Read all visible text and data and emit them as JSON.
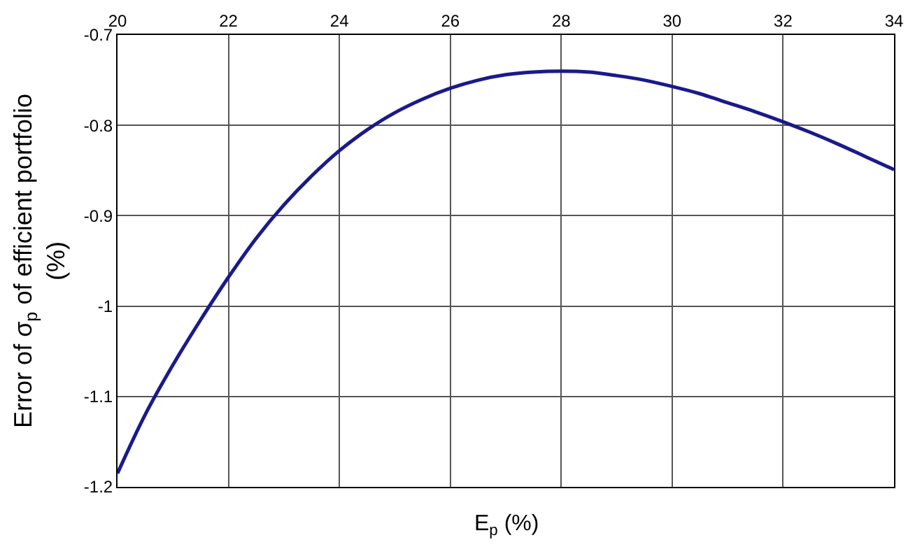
{
  "chart_data": {
    "type": "line",
    "xlabel": "E$_{p}$ (%)",
    "ylabel": "Error of σ$_{p}$ of efficient portfolio (%)",
    "x": [
      20,
      20.5,
      21,
      21.5,
      22,
      22.5,
      23,
      23.5,
      24,
      24.5,
      25,
      25.5,
      26,
      26.5,
      27,
      27.5,
      28,
      28.5,
      29,
      29.5,
      30,
      30.5,
      31,
      31.5,
      32,
      32.5,
      33,
      33.5,
      34
    ],
    "series": [
      {
        "color": "#1a1a8c",
        "values": [
          -1.185,
          -1.12,
          -1.065,
          -1.015,
          -0.968,
          -0.925,
          -0.888,
          -0.856,
          -0.828,
          -0.805,
          -0.786,
          -0.771,
          -0.759,
          -0.75,
          -0.744,
          -0.741,
          -0.74,
          -0.741,
          -0.745,
          -0.75,
          -0.757,
          -0.765,
          -0.775,
          -0.785,
          -0.796,
          -0.808,
          -0.821,
          -0.835,
          -0.849
        ]
      }
    ],
    "xlim": [
      20,
      34
    ],
    "xticks": [
      20,
      22,
      24,
      26,
      28,
      30,
      32,
      34
    ],
    "ylim": [
      -1.2,
      -0.7
    ],
    "yticks": [
      -1.2,
      -1.1,
      -1,
      -0.9,
      -0.8,
      -0.7
    ],
    "grid": true,
    "marker": "none",
    "line_style": "solid"
  }
}
